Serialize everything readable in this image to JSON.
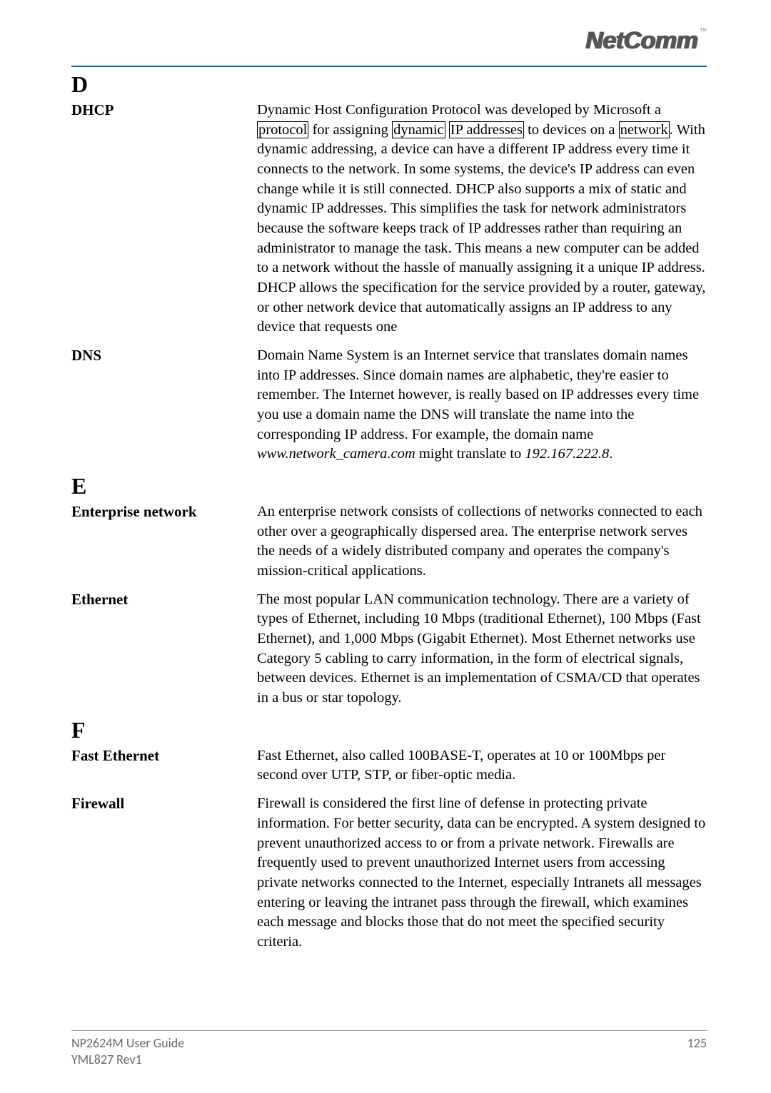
{
  "logo": {
    "text": "NetComm",
    "tm": "™"
  },
  "sections": {
    "D": {
      "letter": "D",
      "entries": {
        "dhcp": {
          "term": "DHCP",
          "def_pre": "Dynamic Host Configuration Protocol was developed by Microsoft a ",
          "box1": "protocol",
          "mid1": " for assigning ",
          "box2": "dynamic",
          "mid2": " ",
          "box3": "IP addresses",
          "mid3": " to devices on a ",
          "box4": "network",
          "def_post": ". With dynamic addressing, a device can have a different IP address every time it connects to the network. In some systems, the device's IP address can even change while it is still connected. DHCP also supports a mix of static and dynamic IP addresses.  This simplifies the task for network administrators because the software keeps track of IP addresses rather than requiring an administrator to manage the task. This means a new computer can be added to a network without the hassle of manually assigning it a unique IP address. DHCP allows the specification for the service provided by a router, gateway, or other network device that automatically assigns an IP address to any device that requests one"
        },
        "dns": {
          "term": "DNS",
          "def_pre": "Domain Name System is an Internet service that translates domain names into IP addresses. Since domain names are alphabetic, they're easier to remember. The Internet however, is really based on IP addresses every time you use a domain name the DNS will translate the name into the corresponding IP address. For example, the domain name ",
          "italic1": "www.network_camera.com",
          "mid1": " might translate to ",
          "italic2": "192.167.222.8",
          "def_post": "."
        }
      }
    },
    "E": {
      "letter": "E",
      "entries": {
        "enterprise": {
          "term": "Enterprise network",
          "def": "An enterprise network consists of collections of networks connected to each other over a geographically dispersed area. The enterprise network serves the needs of a widely distributed company and operates the company's mission-critical applications."
        },
        "ethernet": {
          "term": "Ethernet",
          "def": "The most popular LAN communication technology. There are a variety of types of Ethernet, including 10 Mbps (traditional Ethernet), 100 Mbps (Fast Ethernet), and 1,000 Mbps (Gigabit Ethernet). Most Ethernet networks use Category 5 cabling to carry information, in the form of electrical signals, between devices. Ethernet is an implementation of CSMA/CD that operates in a bus or star topology."
        }
      }
    },
    "F": {
      "letter": "F",
      "entries": {
        "fast": {
          "term": "Fast Ethernet",
          "def": "Fast Ethernet, also called 100BASE-T, operates at 10 or 100Mbps per second over UTP, STP, or fiber-optic media."
        },
        "firewall": {
          "term": "Firewall",
          "def": "Firewall is considered the first line of defense in protecting private information. For better security, data can be encrypted. A system designed to prevent unauthorized access to or from a private network. Firewalls are frequently used to prevent unauthorized Internet users from accessing private networks connected to the Internet, especially Intranets all messages entering or leaving the intranet pass through the firewall, which examines each message and blocks those that do not meet the specified security criteria."
        }
      }
    }
  },
  "footer": {
    "line1": "NP2624M User Guide",
    "line2": "YML827 Rev1",
    "page": "125"
  }
}
